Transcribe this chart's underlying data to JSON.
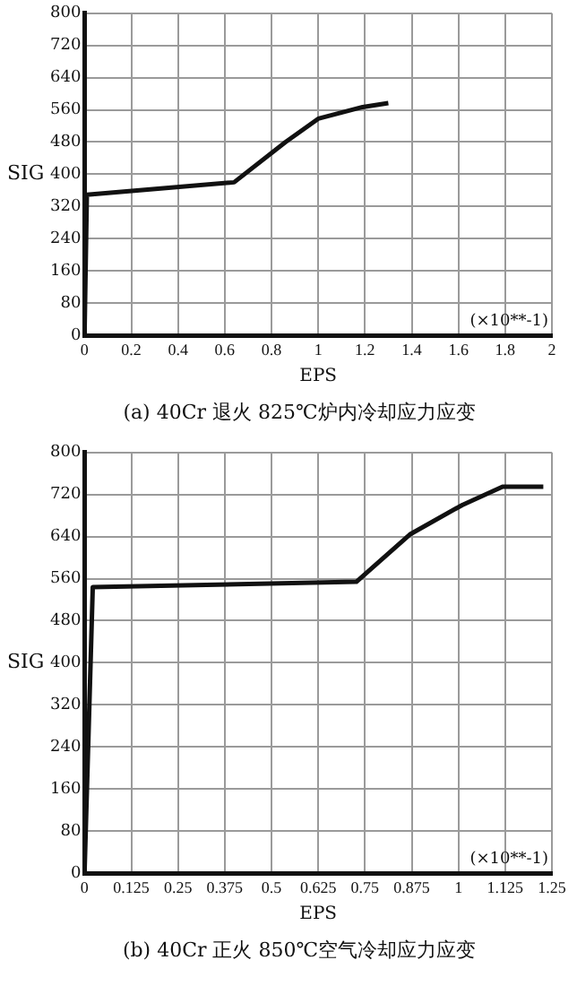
{
  "chart_data": [
    {
      "type": "line",
      "title": "(a) 40Cr 退火 825℃炉内冷却应力应变",
      "xlabel": "EPS",
      "ylabel": "SIG",
      "annotations": [
        "(×10**-1)"
      ],
      "series": [
        {
          "color": "#111111",
          "x": [
            0,
            0.01,
            0.64,
            0.86,
            1.0,
            1.19,
            1.3
          ],
          "values": [
            0,
            349,
            380,
            480,
            538,
            567,
            577
          ]
        }
      ],
      "xlim": [
        0,
        2
      ],
      "xticks": [
        0,
        0.2,
        0.4,
        0.6,
        0.8,
        1,
        1.2,
        1.4,
        1.6,
        1.8,
        2
      ],
      "ylim": [
        0,
        800
      ],
      "yticks": [
        0,
        80,
        160,
        240,
        320,
        400,
        480,
        560,
        640,
        720,
        800
      ],
      "grid": true,
      "legend": false,
      "marker": "none",
      "line_style": "solid"
    },
    {
      "type": "line",
      "title": "(b) 40Cr 正火 850℃空气冷却应力应变",
      "xlabel": "EPS",
      "ylabel": "SIG",
      "annotations": [
        "(×10**-1)"
      ],
      "series": [
        {
          "color": "#111111",
          "x": [
            0,
            0.022,
            0.727,
            0.87,
            1.01,
            1.118,
            1.227
          ],
          "values": [
            0,
            544,
            554,
            644,
            700,
            735,
            735
          ]
        }
      ],
      "xlim": [
        0,
        1.25
      ],
      "xticks": [
        0,
        0.125,
        0.25,
        0.375,
        0.5,
        0.625,
        0.75,
        0.875,
        1,
        1.125,
        1.25
      ],
      "ylim": [
        0,
        800
      ],
      "yticks": [
        0,
        80,
        160,
        240,
        320,
        400,
        480,
        560,
        640,
        720,
        800
      ],
      "grid": true,
      "legend": false,
      "marker": "none",
      "line_style": "solid"
    }
  ]
}
